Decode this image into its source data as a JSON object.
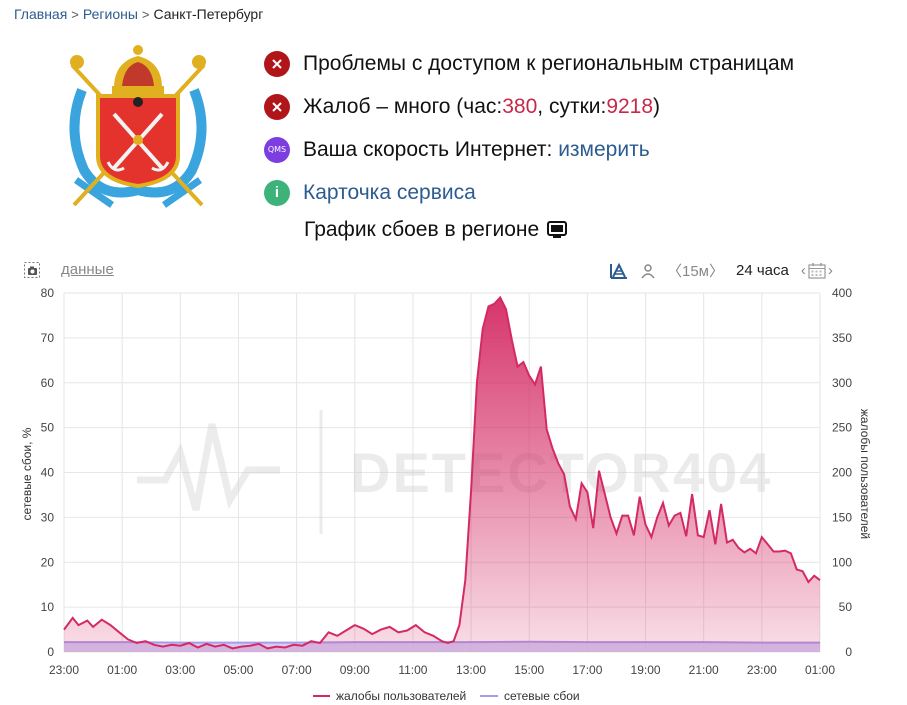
{
  "breadcrumb": {
    "home": "Главная",
    "regions": "Регионы",
    "current": "Санкт-Петербург"
  },
  "status": {
    "access_problems": "Проблемы с доступом к региональным страницам",
    "complaints_prefix": "Жалоб – много (час: ",
    "complaints_hour": "380",
    "complaints_mid": ", сутки: ",
    "complaints_day": "9218",
    "complaints_suffix": ")",
    "speed_label": "Ваша скорость Интернет: ",
    "speed_link": "измерить",
    "qms_icon_text": "QMS",
    "service_card": "Карточка сервиса",
    "chart_title": "График сбоев в регионе"
  },
  "toolbar": {
    "data_link": "данные",
    "interval_15m": "〈15м〉",
    "range_24h": "24 часа"
  },
  "colors": {
    "complaints": "#d42a63",
    "network": "#a99be8",
    "accent_blue": "#2c5c8f",
    "error_red": "#b0151a"
  },
  "chart_data": {
    "type": "area",
    "watermark": "DETECTOR404",
    "x_ticks": [
      "23:00",
      "01:00",
      "03:00",
      "05:00",
      "07:00",
      "09:00",
      "11:00",
      "13:00",
      "15:00",
      "17:00",
      "19:00",
      "21:00",
      "23:00",
      "01:00"
    ],
    "y_left": {
      "label": "сетевые сбои, %",
      "ticks": [
        0,
        10,
        20,
        30,
        40,
        50,
        60,
        70,
        80
      ],
      "range": [
        0,
        80
      ]
    },
    "y_right": {
      "label": "жалобы пользователей",
      "ticks": [
        0,
        50,
        100,
        150,
        200,
        250,
        300,
        350,
        400
      ],
      "range": [
        0,
        400
      ]
    },
    "series": [
      {
        "name": "жалобы пользователей",
        "axis": "right",
        "x_hours": [
          0,
          0.3,
          0.5,
          0.8,
          1,
          1.3,
          1.6,
          1.9,
          2.2,
          2.5,
          2.8,
          3.1,
          3.4,
          3.7,
          4,
          4.3,
          4.6,
          4.9,
          5.2,
          5.5,
          5.8,
          6.1,
          6.4,
          6.7,
          7,
          7.3,
          7.6,
          7.9,
          8.2,
          8.5,
          8.8,
          9.1,
          9.4,
          9.7,
          10,
          10.3,
          10.6,
          10.9,
          11.2,
          11.5,
          11.8,
          12.1,
          12.4,
          12.7,
          13,
          13.2,
          13.4,
          13.6,
          13.8,
          14,
          14.2,
          14.4,
          14.6,
          14.8,
          15,
          15.2,
          15.4,
          15.6,
          15.8,
          16,
          16.2,
          16.4,
          16.6,
          16.8,
          17,
          17.2,
          17.4,
          17.6,
          17.8,
          18,
          18.2,
          18.4,
          18.6,
          18.8,
          19,
          19.2,
          19.4,
          19.6,
          19.8,
          20,
          20.2,
          20.4,
          20.6,
          20.8,
          21,
          21.2,
          21.4,
          21.6,
          21.8,
          22,
          22.2,
          22.4,
          22.6,
          22.8,
          23,
          23.2,
          23.4,
          23.6,
          23.8,
          24,
          24.2,
          24.4,
          24.6,
          24.8,
          25,
          25.2,
          25.4,
          25.6,
          25.8,
          26
        ],
        "values": [
          25,
          38,
          30,
          35,
          28,
          36,
          30,
          22,
          14,
          10,
          12,
          8,
          6,
          8,
          7,
          10,
          5,
          9,
          6,
          8,
          4,
          6,
          7,
          9,
          4,
          6,
          5,
          8,
          7,
          12,
          10,
          22,
          18,
          24,
          30,
          26,
          20,
          25,
          28,
          22,
          24,
          30,
          22,
          18,
          12,
          10,
          12,
          30,
          80,
          180,
          300,
          360,
          385,
          388,
          395,
          382,
          348,
          318,
          323,
          308,
          298,
          318,
          248,
          227,
          210,
          198,
          162,
          148,
          188,
          178,
          138,
          202,
          176,
          150,
          132,
          152,
          152,
          130,
          173,
          142,
          128,
          150,
          166,
          141,
          152,
          155,
          129,
          176,
          130,
          128,
          158,
          120,
          165,
          122,
          125,
          116,
          111,
          115,
          110,
          128,
          120,
          112,
          112,
          113,
          110,
          92,
          90,
          78,
          85,
          80
        ]
      },
      {
        "name": "сетевые сбои",
        "axis": "left",
        "x_hours": [
          0,
          2,
          4,
          6,
          8,
          10,
          12,
          14,
          16,
          18,
          20,
          22,
          24,
          26
        ],
        "values": [
          2.2,
          2.2,
          2.1,
          2.1,
          2.1,
          2.2,
          2.2,
          2.2,
          2.3,
          2.2,
          2.2,
          2.2,
          2.1,
          2.1
        ]
      }
    ],
    "legend_position": "bottom-center",
    "grid": true
  }
}
